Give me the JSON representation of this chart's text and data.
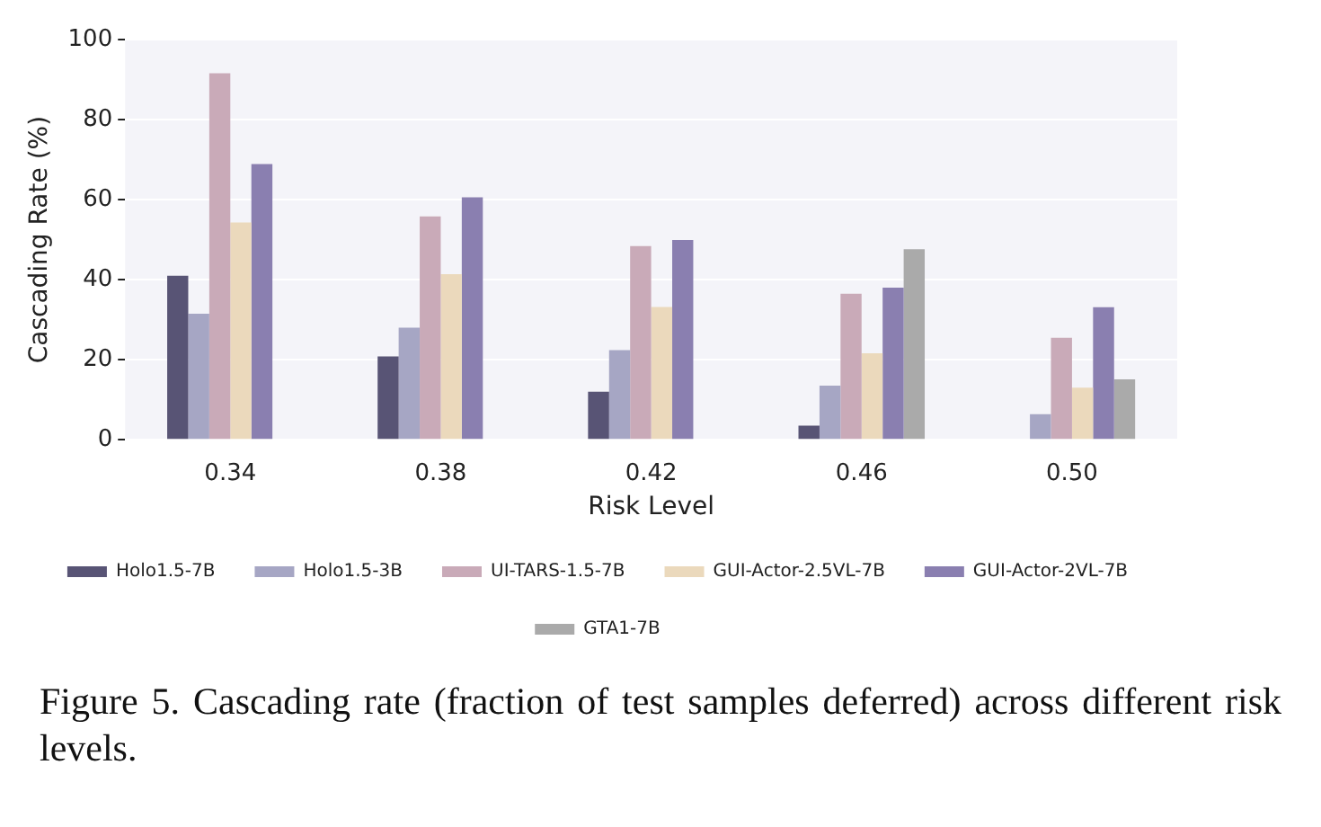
{
  "chart_data": {
    "type": "bar",
    "xlabel": "Risk Level",
    "ylabel": "Cascading Rate (%)",
    "categories": [
      "0.34",
      "0.38",
      "0.42",
      "0.46",
      "0.50"
    ],
    "series": [
      {
        "name": "Holo1.5-7B",
        "color": "#585475",
        "values": [
          41,
          20.8,
          12,
          3.5,
          null
        ]
      },
      {
        "name": "Holo1.5-3B",
        "color": "#a6a6c4",
        "values": [
          31.5,
          28,
          22.4,
          13.5,
          6.4
        ]
      },
      {
        "name": "UI-TARS-1.5-7B",
        "color": "#c9aab8",
        "values": [
          91.6,
          55.8,
          48.4,
          36.5,
          25.5
        ]
      },
      {
        "name": "GUI-Actor-2.5VL-7B",
        "color": "#ebd9bc",
        "values": [
          54.3,
          41.4,
          33.2,
          21.6,
          13
        ]
      },
      {
        "name": "GUI-Actor-2VL-7B",
        "color": "#8a7fb0",
        "values": [
          68.9,
          60.6,
          49.9,
          38,
          33.1
        ]
      },
      {
        "name": "GTA1-7B",
        "color": "#aaaaaa",
        "values": [
          null,
          null,
          null,
          47.6,
          15.1
        ]
      }
    ],
    "ylim": [
      0,
      100
    ],
    "yticks": [
      0,
      20,
      40,
      60,
      80,
      100
    ],
    "grid": "y",
    "legend": "bottom",
    "annotations": [
      "Figure 5.  Cascading rate (fraction of test samples deferred) across different risk levels."
    ]
  }
}
